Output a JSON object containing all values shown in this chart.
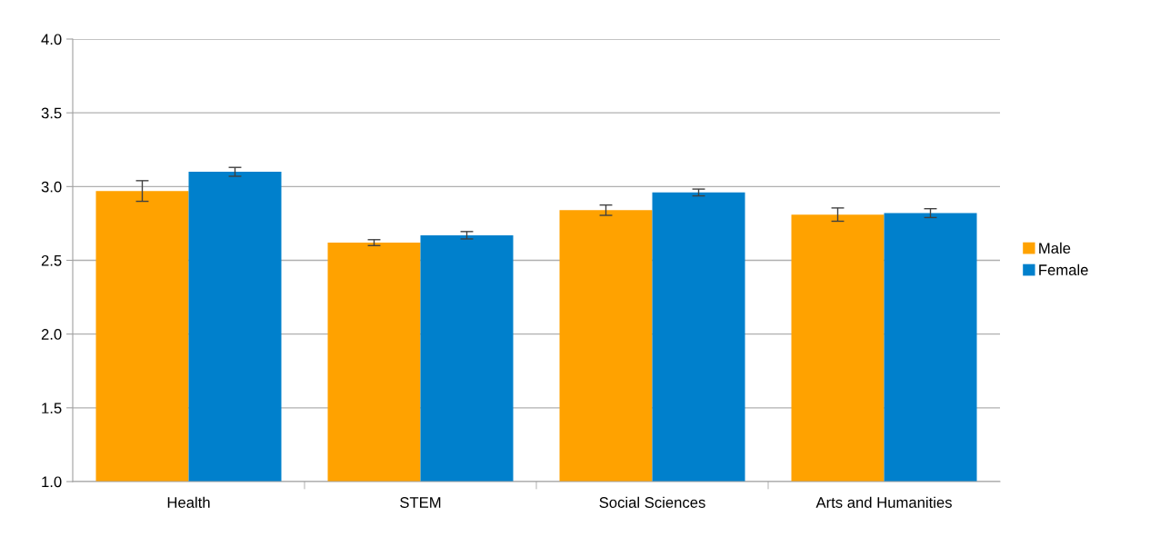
{
  "chart_data": {
    "type": "bar",
    "categories": [
      "Health",
      "STEM",
      "Social Sciences",
      "Arts and Humanities"
    ],
    "series": [
      {
        "name": "Male",
        "color": "#ffa200",
        "values": [
          2.97,
          2.62,
          2.84,
          2.81
        ],
        "errors": [
          0.07,
          0.02,
          0.035,
          0.045
        ]
      },
      {
        "name": "Female",
        "color": "#0080cc",
        "values": [
          3.1,
          2.67,
          2.96,
          2.82
        ],
        "errors": [
          0.03,
          0.025,
          0.023,
          0.03
        ]
      }
    ],
    "ylim": [
      1.0,
      4.0
    ],
    "yticks": [
      {
        "value": 1.0,
        "label": "1.0"
      },
      {
        "value": 1.5,
        "label": "1.5"
      },
      {
        "value": 2.0,
        "label": "2.0"
      },
      {
        "value": 2.5,
        "label": "2.5"
      },
      {
        "value": 3.0,
        "label": "3.0"
      },
      {
        "value": 3.5,
        "label": "3.5"
      },
      {
        "value": 4.0,
        "label": "4.0"
      }
    ],
    "grid": "y",
    "legend": "right"
  }
}
